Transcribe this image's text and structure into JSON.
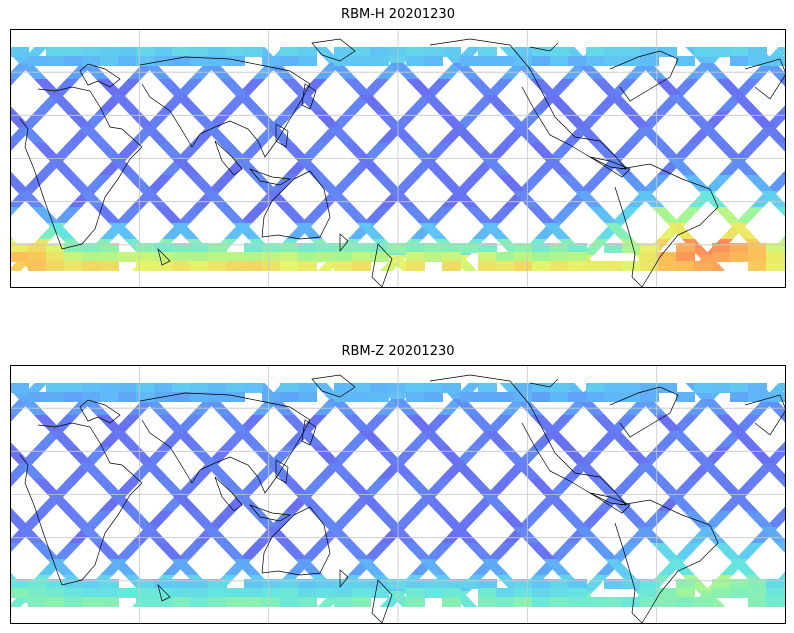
{
  "panels": [
    {
      "title": "RBM-H 20201230",
      "colormap": [
        "#6a6bf0",
        "#5f95f7",
        "#5fc1f7",
        "#66e6e0",
        "#9cf59a",
        "#e6f56a",
        "#fbc058",
        "#fd8a5a",
        "#ff6b5e"
      ],
      "band_intensity": {
        "north": 0.28,
        "tropics": 0.05,
        "south_atlantic": 0.85,
        "southern_edge": 0.6
      }
    },
    {
      "title": "RBM-Z 20201230",
      "colormap": [
        "#6a6bf0",
        "#5f95f7",
        "#5fc1f7",
        "#66e6e0",
        "#9cf59a",
        "#e6f56a",
        "#fbc058",
        "#fd8a5a",
        "#ff6b5e"
      ],
      "band_intensity": {
        "north": 0.22,
        "tropics": 0.05,
        "south_atlantic": 0.5,
        "southern_edge": 0.35
      }
    }
  ],
  "map": {
    "projection": "PlateCarree",
    "central_longitude": 180,
    "gridlines": true,
    "coastline_color": "#000000",
    "grid_color": "#c8c8c8"
  }
}
